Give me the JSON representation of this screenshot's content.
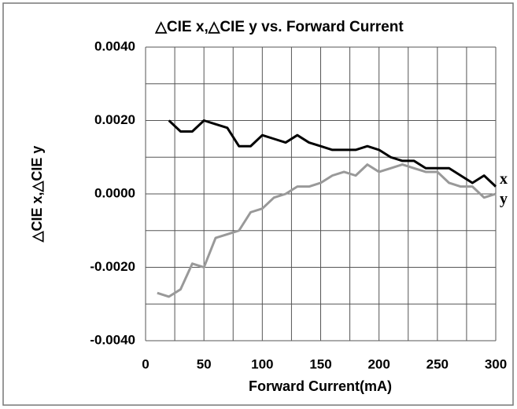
{
  "chart_data": {
    "type": "line",
    "title": "△CIE x,△CIE y vs. Forward Current",
    "x_label": "Forward Current(mA)",
    "y_label": "△CIE x,△CIE y",
    "x": [
      10,
      20,
      30,
      40,
      50,
      60,
      70,
      80,
      90,
      100,
      110,
      120,
      130,
      140,
      150,
      160,
      170,
      180,
      190,
      200,
      210,
      220,
      230,
      240,
      250,
      260,
      270,
      280,
      290,
      300
    ],
    "series": [
      {
        "name": "x",
        "color": "#000000",
        "values": [
          null,
          0.002,
          0.0017,
          0.0017,
          0.002,
          0.0019,
          0.0018,
          0.0013,
          0.0013,
          0.0016,
          0.0015,
          0.0014,
          0.0016,
          0.0014,
          0.0013,
          0.0012,
          0.0012,
          0.0012,
          0.0013,
          0.0012,
          0.001,
          0.0009,
          0.0009,
          0.0007,
          0.0007,
          0.0007,
          0.0005,
          0.0003,
          0.0005,
          0.0002
        ]
      },
      {
        "name": "y",
        "color": "#999999",
        "values": [
          -0.0027,
          -0.0028,
          -0.0026,
          -0.0019,
          -0.002,
          -0.0012,
          -0.0011,
          -0.001,
          -0.0005,
          -0.0004,
          -0.0001,
          0.0,
          0.0002,
          0.0002,
          0.0003,
          0.0005,
          0.0006,
          0.0005,
          0.0008,
          0.0006,
          0.0007,
          0.0008,
          0.0007,
          0.0006,
          0.0006,
          0.0003,
          0.0002,
          0.0002,
          -0.0001,
          0.0
        ]
      }
    ],
    "xlim": [
      0,
      300
    ],
    "xticks": [
      0,
      50,
      100,
      150,
      200,
      250,
      300
    ],
    "xgrid": [
      0,
      25,
      50,
      75,
      100,
      125,
      150,
      175,
      200,
      225,
      250,
      275,
      300
    ],
    "ylim": [
      -0.004,
      0.004
    ],
    "yticks": [
      {
        "value": -0.004,
        "label": "-0.0040"
      },
      {
        "value": -0.002,
        "label": "-0.0020"
      },
      {
        "value": 0,
        "label": "0.0000"
      },
      {
        "value": 0.002,
        "label": "0.0020"
      },
      {
        "value": 0.004,
        "label": "0.0040"
      }
    ],
    "ygrid": [
      -0.004,
      -0.003,
      -0.002,
      -0.001,
      0,
      0.001,
      0.002,
      0.003,
      0.004
    ],
    "grid": true
  }
}
